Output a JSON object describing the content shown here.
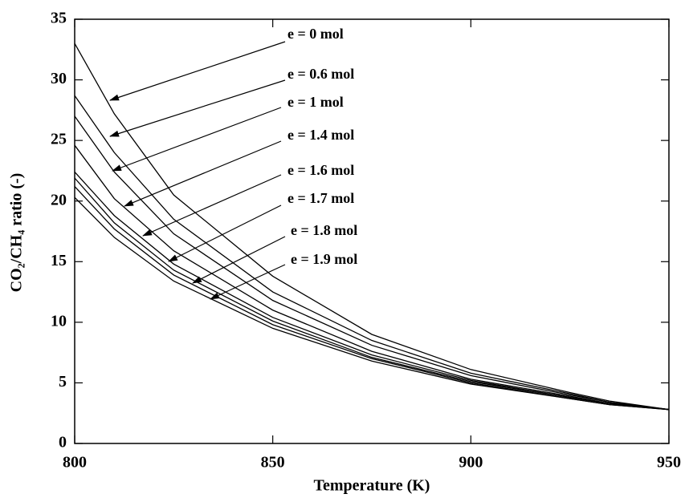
{
  "chart_data": {
    "type": "line",
    "x_label": "Temperature (K)",
    "y_label": "CO₂/CH₄ ratio (-)",
    "x": [
      800,
      810,
      825,
      850,
      875,
      900,
      925,
      935,
      950
    ],
    "series": [
      {
        "name": "e = 0 mol",
        "color": "#000000",
        "values": [
          33,
          27.2,
          20.5,
          13.8,
          9.0,
          6.1,
          4.2,
          3.5,
          2.8
        ]
      },
      {
        "name": "e = 0.6 mol",
        "color": "#000000",
        "values": [
          28.7,
          24.0,
          18.5,
          12.5,
          8.5,
          5.8,
          4.1,
          3.4,
          2.8
        ]
      },
      {
        "name": "e = 1 mol",
        "color": "#000000",
        "values": [
          27.0,
          22.4,
          17.3,
          11.8,
          8.1,
          5.6,
          4.0,
          3.4,
          2.8
        ]
      },
      {
        "name": "e = 1.4 mol",
        "color": "#000000",
        "values": [
          24.6,
          20.2,
          15.9,
          11.0,
          7.6,
          5.3,
          3.9,
          3.3,
          2.8
        ]
      },
      {
        "name": "e = 1.6 mol",
        "color": "#000000",
        "values": [
          22.4,
          18.8,
          14.8,
          10.4,
          7.3,
          5.2,
          3.8,
          3.3,
          2.8
        ]
      },
      {
        "name": "e = 1.7 mol",
        "color": "#000000",
        "values": [
          21.9,
          18.2,
          14.3,
          10.1,
          7.1,
          5.1,
          3.8,
          3.3,
          2.8
        ]
      },
      {
        "name": "e = 1.8 mol",
        "color": "#000000",
        "values": [
          21.2,
          17.7,
          13.9,
          9.8,
          7.0,
          5.0,
          3.7,
          3.2,
          2.8
        ]
      },
      {
        "name": "e = 1.9 mol",
        "color": "#000000",
        "values": [
          20.3,
          17.0,
          13.4,
          9.5,
          6.8,
          4.9,
          3.7,
          3.2,
          2.8
        ]
      }
    ],
    "xlim": [
      800,
      950
    ],
    "xticks": [
      800,
      850,
      900,
      950
    ],
    "ylim": [
      0,
      35
    ],
    "yticks": [
      0,
      5,
      10,
      15,
      20,
      25,
      30,
      35
    ]
  }
}
